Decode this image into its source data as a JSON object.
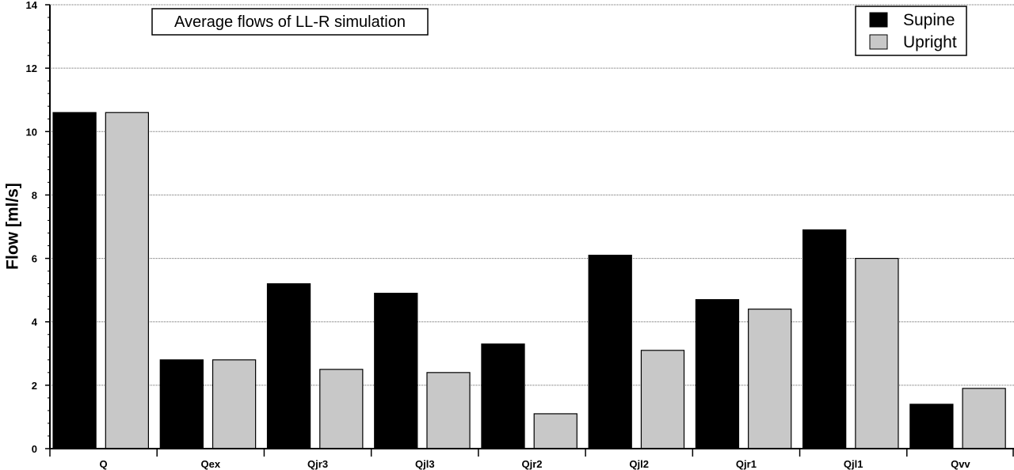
{
  "chart_data": {
    "type": "bar",
    "title": "Average flows of LL-R simulation",
    "xlabel": "",
    "ylabel": "Flow [ml/s]",
    "ylim": [
      0,
      14
    ],
    "yticks": [
      0,
      2,
      4,
      6,
      8,
      10,
      12,
      14
    ],
    "grid": true,
    "legend_position": "top-right",
    "categories": [
      "Q",
      "Qex",
      "Qjr3",
      "Qjl3",
      "Qjr2",
      "Qjl2",
      "Qjr1",
      "Qjl1",
      "Qvv"
    ],
    "series": [
      {
        "name": "Supine",
        "color": "#000000",
        "values": [
          10.6,
          2.8,
          5.2,
          4.9,
          3.3,
          6.1,
          4.7,
          6.9,
          1.4
        ]
      },
      {
        "name": "Upright",
        "color": "#c8c8c8",
        "values": [
          10.6,
          2.8,
          2.5,
          2.4,
          1.1,
          3.1,
          4.4,
          6.0,
          1.9
        ]
      }
    ]
  }
}
